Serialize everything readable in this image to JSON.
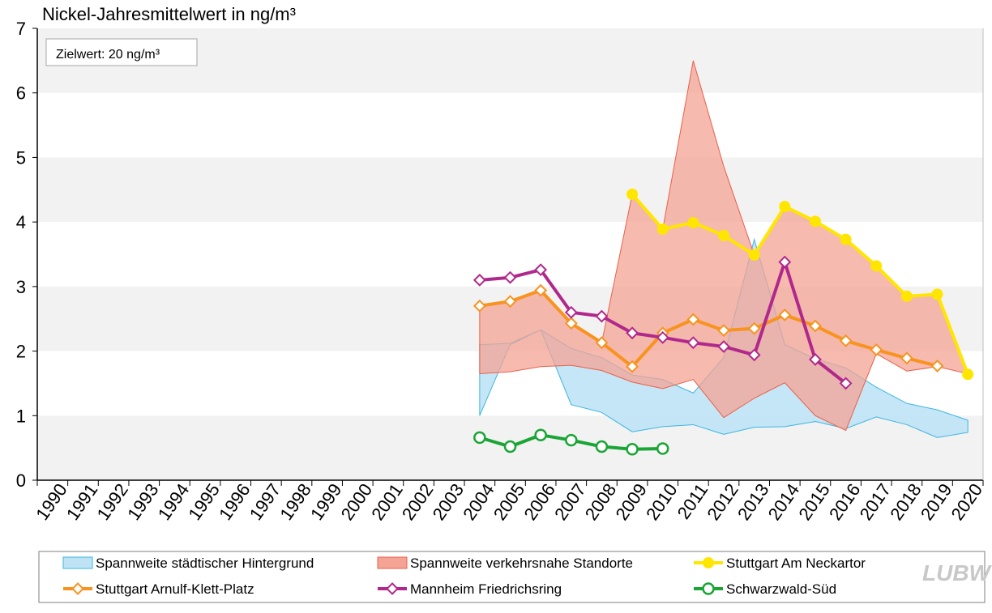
{
  "chart_data": {
    "type": "line",
    "title": "Nickel-Jahresmittelwert in ng/m³",
    "annotation": "Zielwert: 20 ng/m³",
    "ylim": [
      0,
      7
    ],
    "yticks": [
      "0",
      "1",
      "2",
      "3",
      "4",
      "5",
      "6",
      "7"
    ],
    "categories": [
      "1990",
      "1991",
      "1992",
      "1993",
      "1994",
      "1995",
      "1996",
      "1997",
      "1998",
      "1999",
      "2000",
      "2001",
      "2002",
      "2003",
      "2004",
      "2005",
      "2006",
      "2007",
      "2008",
      "2009",
      "2010",
      "2011",
      "2012",
      "2013",
      "2014",
      "2015",
      "2016",
      "2017",
      "2018",
      "2019",
      "2020"
    ],
    "grid": "horizontal bands",
    "bands": [
      {
        "name": "Spannweite städtischer Hintergrund",
        "color": "#bfe3f5",
        "edge": "#3bb6e0",
        "x": [
          2004,
          2005,
          2006,
          2007,
          2008,
          2009,
          2010,
          2011,
          2012,
          2013,
          2014,
          2015,
          2016,
          2017,
          2018,
          2019,
          2020
        ],
        "low": [
          1.0,
          2.1,
          2.33,
          1.17,
          1.05,
          0.75,
          0.83,
          0.86,
          0.71,
          0.82,
          0.83,
          0.91,
          0.8,
          0.98,
          0.86,
          0.66,
          0.74
        ],
        "high": [
          2.1,
          2.12,
          2.33,
          2.04,
          1.9,
          1.63,
          1.56,
          1.35,
          1.9,
          3.73,
          2.1,
          1.88,
          1.74,
          1.44,
          1.19,
          1.09,
          0.93
        ],
        "low_start": 1.65
      },
      {
        "name": "Spannweite verkehrsnahe Standorte",
        "color": "#f4a394",
        "edge": "#e8604a",
        "x": [
          2004,
          2005,
          2006,
          2007,
          2008,
          2009,
          2010,
          2011,
          2012,
          2013,
          2014,
          2015,
          2016,
          2017,
          2018,
          2019,
          2020
        ],
        "low": [
          1.65,
          1.68,
          1.76,
          1.78,
          1.7,
          1.52,
          1.42,
          1.56,
          0.97,
          1.27,
          1.51,
          1.0,
          0.77,
          1.96,
          1.69,
          1.76,
          1.65
        ],
        "high": [
          2.7,
          2.77,
          2.94,
          2.43,
          2.13,
          4.43,
          3.89,
          6.5,
          4.86,
          3.49,
          4.24,
          4.01,
          3.73,
          3.32,
          2.85,
          2.88,
          1.65
        ]
      }
    ],
    "series": [
      {
        "name": "Stuttgart Am Neckartor",
        "color": "#ffe600",
        "marker": "circle-filled",
        "x": [
          2009,
          2010,
          2011,
          2012,
          2013,
          2014,
          2015,
          2016,
          2017,
          2018,
          2019,
          2020
        ],
        "values": [
          4.43,
          3.89,
          3.99,
          3.79,
          3.49,
          4.24,
          4.01,
          3.73,
          3.32,
          2.85,
          2.88,
          1.64
        ]
      },
      {
        "name": "Stuttgart Arnulf-Klett-Platz",
        "color": "#f7931e",
        "marker": "diamond-open",
        "x": [
          2004,
          2005,
          2006,
          2007,
          2008,
          2009,
          2010,
          2011,
          2012,
          2013,
          2014,
          2015,
          2016,
          2017,
          2018,
          2019
        ],
        "values": [
          2.7,
          2.77,
          2.94,
          2.43,
          2.13,
          1.76,
          2.28,
          2.49,
          2.32,
          2.35,
          2.56,
          2.39,
          2.16,
          2.02,
          1.89,
          1.77
        ]
      },
      {
        "name": "Mannheim Friedrichsring",
        "color": "#b1288c",
        "marker": "diamond-open",
        "x": [
          2004,
          2005,
          2006,
          2007,
          2008,
          2009,
          2010,
          2011,
          2012,
          2013,
          2014,
          2015,
          2016
        ],
        "values": [
          3.1,
          3.14,
          3.26,
          2.6,
          2.54,
          2.28,
          2.21,
          2.13,
          2.07,
          1.94,
          3.38,
          1.87,
          1.5
        ]
      },
      {
        "name": "Schwarzwald-Süd",
        "color": "#1aa535",
        "marker": "circle-open",
        "x": [
          2004,
          2005,
          2006,
          2007,
          2008,
          2009,
          2010
        ],
        "values": [
          0.66,
          0.52,
          0.7,
          0.62,
          0.52,
          0.48,
          0.49
        ]
      }
    ],
    "legend_position": "bottom",
    "legend_order": [
      "Spannweite städtischer Hintergrund",
      "Spannweite verkehrsnahe Standorte",
      "Stuttgart Am Neckartor",
      "Stuttgart Arnulf-Klett-Platz",
      "Mannheim Friedrichsring",
      "Schwarzwald-Süd"
    ]
  },
  "logo": "LUBW"
}
